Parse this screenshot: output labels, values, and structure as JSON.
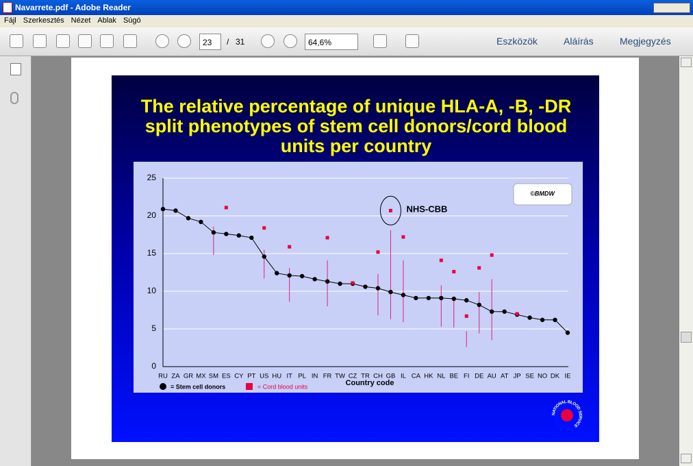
{
  "window": {
    "title": "Navarrete.pdf - Adobe Reader"
  },
  "menu": [
    "Fájl",
    "Szerkesztés",
    "Nézet",
    "Ablak",
    "Súgó"
  ],
  "toolbar": {
    "page": "23",
    "separator": "/",
    "page_count": "31",
    "zoom": "64,6%",
    "tools": [
      "Eszközök",
      "Aláírás",
      "Megjegyzés"
    ]
  },
  "chart_data": {
    "type": "line",
    "title": "The relative percentage of unique HLA-A, -B, -DR split phenotypes of stem cell donors/cord blood units per country",
    "x_label": "Country code",
    "annotations": [
      "NHS-CBB",
      "©BMDW"
    ],
    "logo_text": "NATIONAL BLOOD SERVICE",
    "categories": [
      "RU",
      "ZA",
      "GR",
      "MX",
      "SM",
      "ES",
      "CY",
      "PT",
      "US",
      "HU",
      "IT",
      "PL",
      "IN",
      "FR",
      "TW",
      "CZ",
      "TR",
      "CH",
      "GB",
      "IL",
      "CA",
      "HK",
      "NL",
      "BE",
      "FI",
      "DE",
      "AU",
      "AT",
      "JP",
      "SE",
      "NO",
      "DK",
      "IE"
    ],
    "series": [
      {
        "name": "= Stem cell donors",
        "color": "#000000",
        "values": [
          20.9,
          20.7,
          19.7,
          19.2,
          17.8,
          17.6,
          17.4,
          17.1,
          14.6,
          12.4,
          12.1,
          12.0,
          11.6,
          11.3,
          11.0,
          11.0,
          10.6,
          10.4,
          9.9,
          9.5,
          9.1,
          9.1,
          9.1,
          9.0,
          8.8,
          8.2,
          7.3,
          7.3,
          6.9,
          6.5,
          6.2,
          6.2,
          4.5
        ]
      },
      {
        "name": "= Cord blood units",
        "color": "#e8003c",
        "values": [
          null,
          null,
          null,
          null,
          null,
          21.1,
          null,
          null,
          18.4,
          null,
          15.9,
          null,
          null,
          17.1,
          null,
          11.1,
          null,
          15.2,
          20.7,
          17.2,
          null,
          null,
          14.1,
          12.6,
          6.7,
          13.1,
          14.8,
          null,
          7.0,
          null,
          null,
          null,
          null
        ]
      }
    ],
    "range_low": [
      null,
      null,
      null,
      null,
      14.8,
      null,
      null,
      null,
      11.7,
      null,
      8.6,
      null,
      null,
      8.0,
      null,
      null,
      null,
      6.8,
      6.3,
      5.9,
      null,
      null,
      5.3,
      5.2,
      2.6,
      4.4,
      3.5,
      null,
      null,
      null,
      null,
      null,
      null
    ],
    "range_high": [
      null,
      null,
      null,
      null,
      18.6,
      null,
      null,
      null,
      15.5,
      null,
      13.1,
      null,
      null,
      14.1,
      null,
      null,
      null,
      12.3,
      18.1,
      14.1,
      null,
      null,
      10.8,
      9.1,
      4.7,
      9.9,
      11.6,
      null,
      null,
      null,
      null,
      null,
      null
    ],
    "range_color": "#e0207a",
    "ylim": [
      0,
      25
    ],
    "yticks": [
      0,
      5,
      10,
      15,
      20,
      25
    ],
    "grid": true
  }
}
